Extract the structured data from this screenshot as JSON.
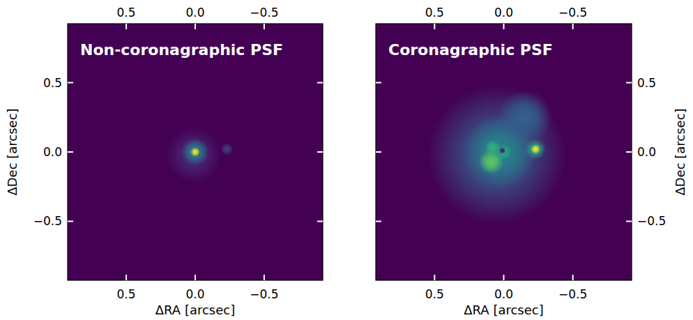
{
  "chart_data": [
    {
      "type": "image",
      "title": "Non-coronagraphic PSF",
      "xlabel": "ΔRA [arcsec]",
      "ylabel": "ΔDec [arcsec]",
      "xlim": [
        0.925,
        -0.925
      ],
      "ylim": [
        -0.925,
        0.925
      ],
      "xticks": [
        0.5,
        {
          "value": 0,
          "label": "0.0"
        },
        {
          "value": -0.5,
          "label": "−0.5"
        }
      ],
      "yticks": [
        {
          "value": -0.5,
          "label": "−0.5"
        },
        {
          "value": 0,
          "label": "0.0"
        },
        0.5
      ],
      "sources": [
        {
          "x": 0.01,
          "y": -0.02,
          "radius": 0.2,
          "intensity": 0.12
        },
        {
          "x": 0.0,
          "y": 0.0,
          "radius": 0.1,
          "intensity": 0.45
        },
        {
          "x": -0.23,
          "y": 0.02,
          "radius": 0.045,
          "intensity": 0.2
        },
        {
          "x": 0.0,
          "y": 0.0,
          "radius": 0.035,
          "intensity": 1.0
        }
      ]
    },
    {
      "type": "image",
      "title": "Coronagraphic PSF",
      "xlabel": "ΔRA [arcsec]",
      "ylabel": "ΔDec [arcsec]",
      "xlim": [
        0.925,
        -0.925
      ],
      "ylim": [
        -0.925,
        0.925
      ],
      "xticks": [
        0.5,
        {
          "value": 0,
          "label": "0.0"
        },
        {
          "value": -0.5,
          "label": "−0.5"
        }
      ],
      "yticks": [
        {
          "value": -0.5,
          "label": "−0.5"
        },
        {
          "value": 0,
          "label": "0.0"
        },
        0.5
      ],
      "sources": [
        {
          "x": 0.05,
          "y": -0.02,
          "radius": 0.5,
          "intensity": 0.3
        },
        {
          "x": 0.03,
          "y": 0.0,
          "radius": 0.26,
          "intensity": 0.45
        },
        {
          "x": -0.15,
          "y": 0.25,
          "radius": 0.2,
          "intensity": 0.32
        },
        {
          "x": 0.09,
          "y": -0.07,
          "radius": 0.09,
          "intensity": 0.75
        },
        {
          "x": 0.08,
          "y": 0.03,
          "radius": 0.06,
          "intensity": 0.65
        },
        {
          "x": 0.0,
          "y": 0.0,
          "radius": 0.06,
          "intensity": 0.6
        },
        {
          "x": 0.01,
          "y": 0.01,
          "radius": 0.025,
          "intensity": 0.05
        },
        {
          "x": -0.23,
          "y": 0.02,
          "radius": 0.075,
          "intensity": 0.6
        },
        {
          "x": -0.23,
          "y": 0.02,
          "radius": 0.035,
          "intensity": 1.0
        }
      ]
    }
  ]
}
